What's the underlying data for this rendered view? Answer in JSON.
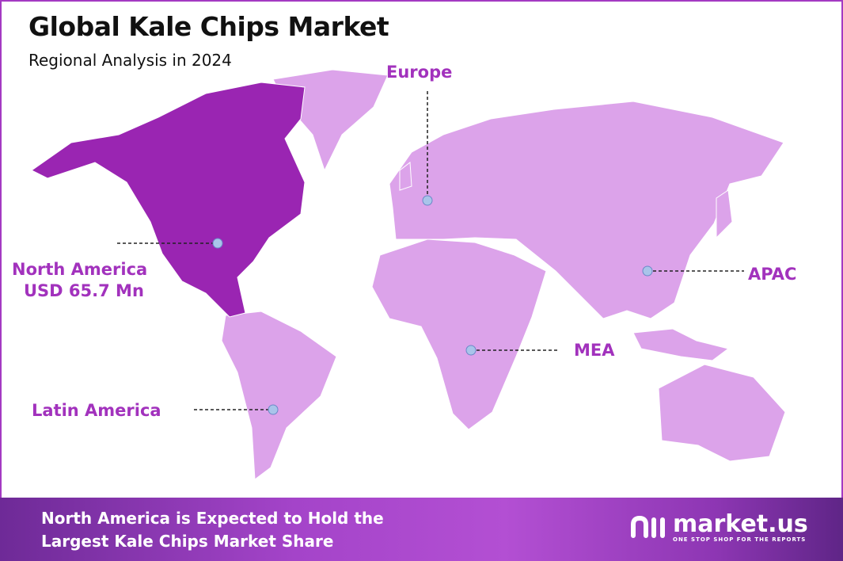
{
  "header": {
    "title": "Global Kale Chips Market",
    "subtitle": "Regional Analysis in 2024"
  },
  "colors": {
    "highlight_region": "#9a25b2",
    "other_regions": "#dca3ea",
    "label": "#a232bd",
    "marker": "#a9c4ea"
  },
  "regions": [
    {
      "name": "Europe",
      "highlighted": false
    },
    {
      "name": "North America",
      "value": "USD 65.7 Mn",
      "highlighted": true
    },
    {
      "name": "Latin America",
      "highlighted": false
    },
    {
      "name": "MEA",
      "highlighted": false
    },
    {
      "name": "APAC",
      "highlighted": false
    }
  ],
  "footer": {
    "line1": "North America is Expected to Hold the",
    "line2": "Largest Kale Chips Market Share"
  },
  "logo": {
    "name": "market.us",
    "tagline": "ONE STOP SHOP FOR THE REPORTS"
  }
}
